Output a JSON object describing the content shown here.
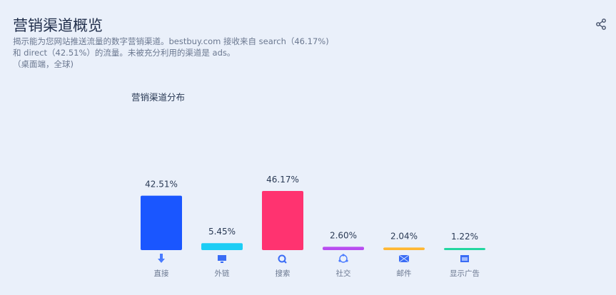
{
  "header": {
    "title": "营销渠道概览",
    "desc_lines": [
      "揭示能为您网站推送流量的数字营销渠道。bestbuy.com 接收来自 search（46.17%)",
      "和 direct（42.51%）的流量。未被充分利用的渠道是 ads。",
      "（桌面端，全球)"
    ],
    "share_icon": "share-icon"
  },
  "chart_data": {
    "type": "bar",
    "title": "营销渠道分布",
    "categories": [
      "直接",
      "外链",
      "搜索",
      "社交",
      "邮件",
      "显示广告"
    ],
    "values": [
      42.51,
      5.45,
      46.17,
      2.6,
      2.04,
      1.22
    ],
    "labels": [
      "42.51%",
      "5.45%",
      "46.17%",
      "2.60%",
      "2.04%",
      "1.22%"
    ],
    "colors": [
      "#1a56ff",
      "#1ccdf5",
      "#ff3370",
      "#b84cf0",
      "#ffb732",
      "#22d6a0"
    ],
    "icons": [
      "arrow-down-icon",
      "monitor-icon",
      "search-icon",
      "social-icon",
      "mail-icon",
      "display-ad-icon"
    ],
    "ylim": [
      0,
      46.17
    ],
    "grid": false
  }
}
